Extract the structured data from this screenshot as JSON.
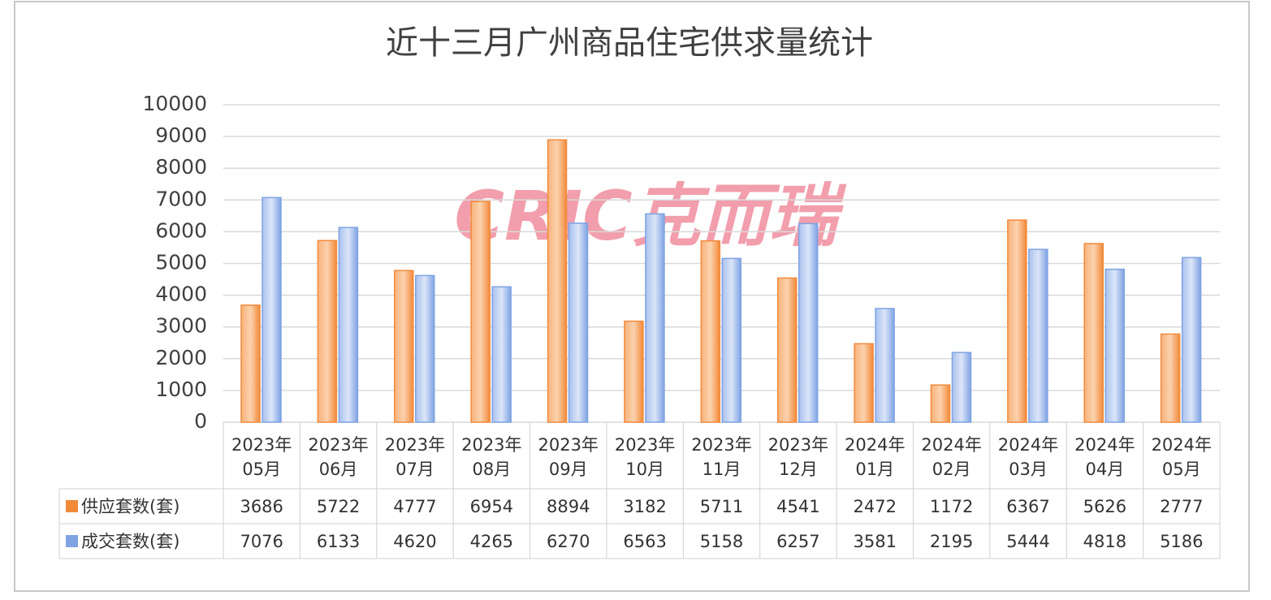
{
  "chart_data": {
    "type": "bar",
    "title": "近十三月广州商品住宅供求量统计",
    "watermark": "CRIC克而瑞",
    "categories": [
      "2023年\n05月",
      "2023年\n06月",
      "2023年\n07月",
      "2023年\n08月",
      "2023年\n09月",
      "2023年\n10月",
      "2023年\n11月",
      "2023年\n12月",
      "2024年\n01月",
      "2024年\n02月",
      "2024年\n03月",
      "2024年\n04月",
      "2024年\n05月"
    ],
    "series": [
      {
        "name": "供应套数(套)",
        "color": "#f28a3a",
        "values": [
          3686,
          5722,
          4777,
          6954,
          8894,
          3182,
          5711,
          4541,
          2472,
          1172,
          6367,
          5626,
          2777
        ]
      },
      {
        "name": "成交套数(套)",
        "color": "#7fa3e3",
        "values": [
          7076,
          6133,
          4620,
          4265,
          6270,
          6563,
          5158,
          6257,
          3581,
          2195,
          5444,
          4818,
          5186
        ]
      }
    ],
    "ylim": [
      0,
      10000
    ],
    "yticks": [
      0,
      1000,
      2000,
      3000,
      4000,
      5000,
      6000,
      7000,
      8000,
      9000,
      10000
    ],
    "grid": true
  }
}
